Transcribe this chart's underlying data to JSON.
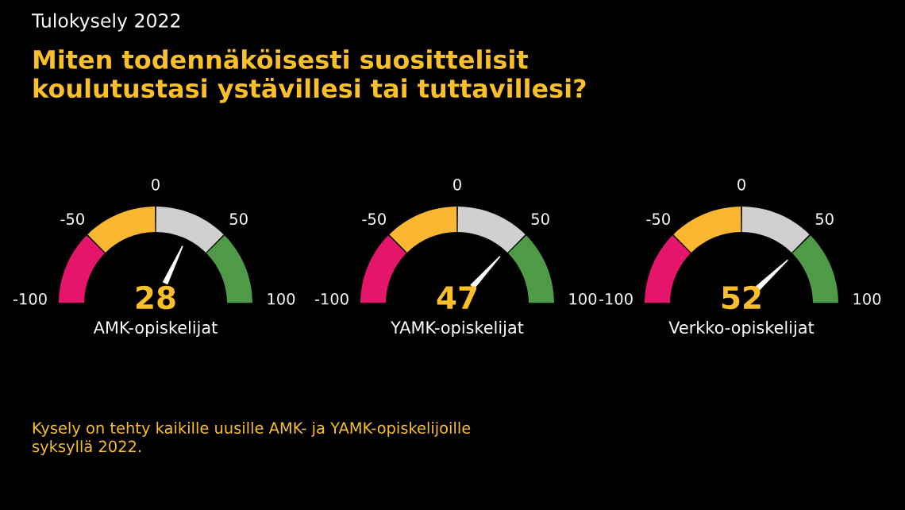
{
  "chart_data": [
    {
      "type": "donut",
      "subtitle": "Tulokysely 2022",
      "title": "Miten todennäköisesti suosittelisit\nkoulutustasi ystävillesi tai tuttavillesi?",
      "xlabel": "AMK-opiskelijat",
      "categories": [
        null,
        null,
        null,
        null
      ],
      "values": [
        25,
        25,
        25,
        25
      ],
      "colors": [
        "#e4156b",
        "#fbb731",
        "#d0d0d0",
        "#4e9a47"
      ],
      "annotations": [
        "-100",
        "-50",
        "0",
        "50",
        "100",
        "28",
        "Kysely on tehty kaikille uusille AMK- ja YAMK-opiskelijoille\nsyksyllä 2022."
      ]
    },
    {
      "type": "donut",
      "xlabel": "YAMK-opiskelijat",
      "categories": [
        null,
        null,
        null,
        null
      ],
      "values": [
        25,
        25,
        25,
        25
      ],
      "colors": [
        "#e4156b",
        "#fbb731",
        "#d0d0d0",
        "#4e9a47"
      ],
      "annotations": [
        "-100",
        "-50",
        "0",
        "50",
        "100",
        "47"
      ]
    },
    {
      "type": "donut",
      "xlabel": "Verkko-opiskelijat",
      "categories": [
        null,
        null,
        null,
        null
      ],
      "values": [
        25,
        25,
        25,
        25
      ],
      "colors": [
        "#e4156b",
        "#fbb731",
        "#d0d0d0",
        "#4e9a47"
      ],
      "annotations": [
        "-100",
        "-50",
        "0",
        "50",
        "100",
        "52"
      ]
    }
  ]
}
